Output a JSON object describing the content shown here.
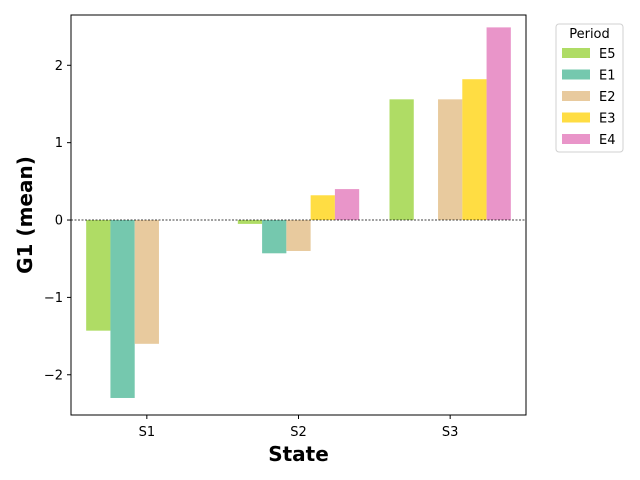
{
  "chart_data": {
    "type": "bar",
    "title": "",
    "xlabel": "State",
    "ylabel": "G1 (mean)",
    "categories": [
      "S1",
      "S2",
      "S3"
    ],
    "ylim": [
      -2.52,
      2.65
    ],
    "yticks": [
      -2,
      -1,
      0,
      1,
      2
    ],
    "ytick_labels": [
      "−2",
      "−1",
      "0",
      "1",
      "2"
    ],
    "zero_line": true,
    "grid": false,
    "legend": {
      "title": "Period",
      "placement": "outside-right-top"
    },
    "series": [
      {
        "name": "E5",
        "color": "#a6d854",
        "values": [
          -1.43,
          -0.05,
          1.56
        ]
      },
      {
        "name": "E1",
        "color": "#66c2a5",
        "values": [
          -2.3,
          -0.43,
          null
        ]
      },
      {
        "name": "E2",
        "color": "#e5c494",
        "values": [
          -1.6,
          -0.4,
          1.56
        ]
      },
      {
        "name": "E3",
        "color": "#ffd92f",
        "values": [
          null,
          0.32,
          1.82
        ]
      },
      {
        "name": "E4",
        "color": "#e78ac3",
        "values": [
          null,
          0.4,
          2.49
        ]
      }
    ]
  }
}
